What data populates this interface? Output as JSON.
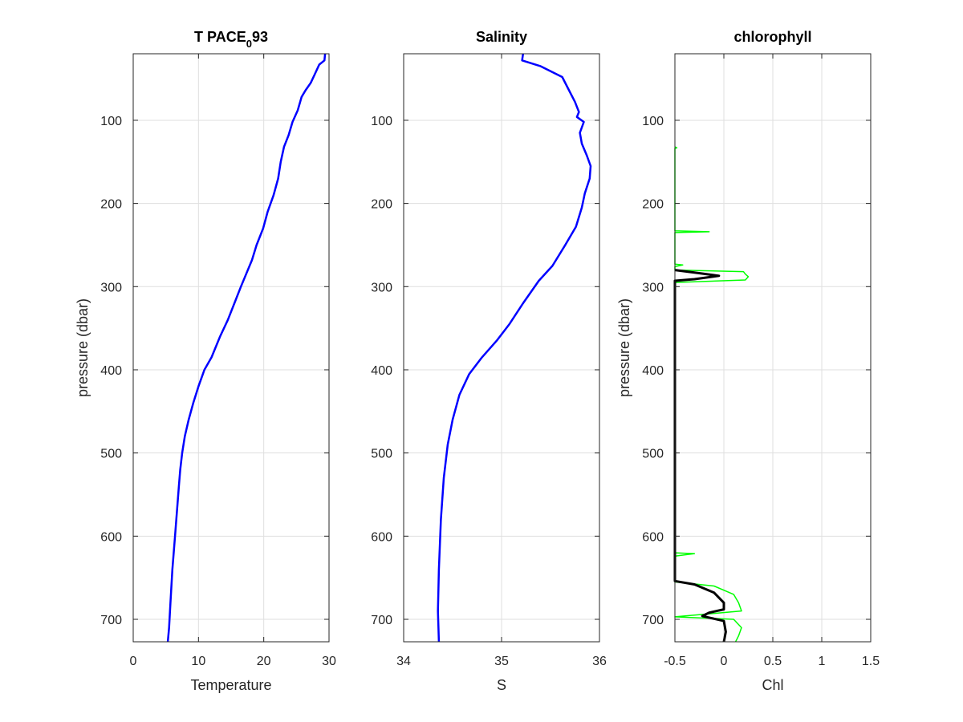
{
  "chart_data": [
    {
      "type": "line",
      "title": "T PACE",
      "title_subscript": "0",
      "title_suffix": "93",
      "xlabel": "Temperature",
      "ylabel": "pressure (dbar)",
      "xlim": [
        0,
        30
      ],
      "ylim": [
        20,
        727
      ],
      "y_reversed": true,
      "grid": true,
      "xticks": [
        0,
        10,
        20,
        30
      ],
      "yticks": [
        100,
        200,
        300,
        400,
        500,
        600,
        700
      ],
      "series": [
        {
          "color": "#0000ff",
          "points": [
            [
              29.4,
              20
            ],
            [
              29.3,
              28
            ],
            [
              28.5,
              33
            ],
            [
              27.8,
              45
            ],
            [
              27.2,
              55
            ],
            [
              26.4,
              64
            ],
            [
              25.8,
              72
            ],
            [
              25.2,
              88
            ],
            [
              24.4,
              102
            ],
            [
              23.8,
              118
            ],
            [
              23.1,
              132
            ],
            [
              22.6,
              150
            ],
            [
              22.2,
              170
            ],
            [
              21.5,
              190
            ],
            [
              20.6,
              210
            ],
            [
              19.9,
              230
            ],
            [
              18.9,
              250
            ],
            [
              18.2,
              268
            ],
            [
              17.3,
              285
            ],
            [
              16.5,
              300
            ],
            [
              15.5,
              320
            ],
            [
              14.5,
              340
            ],
            [
              13.3,
              360
            ],
            [
              12.0,
              385
            ],
            [
              10.9,
              400
            ],
            [
              10.0,
              420
            ],
            [
              9.2,
              440
            ],
            [
              8.5,
              460
            ],
            [
              7.9,
              480
            ],
            [
              7.5,
              500
            ],
            [
              7.2,
              520
            ],
            [
              7.0,
              540
            ],
            [
              6.7,
              570
            ],
            [
              6.4,
              600
            ],
            [
              6.0,
              640
            ],
            [
              5.7,
              680
            ],
            [
              5.5,
              710
            ],
            [
              5.3,
              727
            ]
          ]
        }
      ]
    },
    {
      "type": "line",
      "title": "Salinity",
      "xlabel": "S",
      "ylabel": "",
      "xlim": [
        34,
        36
      ],
      "ylim": [
        20,
        727
      ],
      "y_reversed": true,
      "grid": true,
      "xticks": [
        34,
        35,
        36
      ],
      "yticks": [
        100,
        200,
        300,
        400,
        500,
        600,
        700
      ],
      "series": [
        {
          "color": "#ff0000",
          "points": [
            [
              35.22,
              20
            ],
            [
              35.21,
              28
            ],
            [
              35.4,
              35
            ],
            [
              35.62,
              48
            ],
            [
              35.68,
              62
            ],
            [
              35.75,
              78
            ],
            [
              35.79,
              90
            ],
            [
              35.77,
              96
            ],
            [
              35.84,
              102
            ],
            [
              35.8,
              115
            ],
            [
              35.82,
              128
            ],
            [
              35.87,
              142
            ],
            [
              35.91,
              155
            ],
            [
              35.9,
              170
            ],
            [
              35.85,
              188
            ],
            [
              35.82,
              205
            ],
            [
              35.76,
              228
            ],
            [
              35.65,
              250
            ],
            [
              35.52,
              275
            ],
            [
              35.38,
              293
            ],
            [
              35.22,
              320
            ],
            [
              35.08,
              345
            ],
            [
              34.95,
              365
            ],
            [
              34.8,
              385
            ],
            [
              34.67,
              405
            ],
            [
              34.57,
              430
            ],
            [
              34.5,
              460
            ],
            [
              34.45,
              490
            ],
            [
              34.41,
              530
            ],
            [
              34.38,
              580
            ],
            [
              34.36,
              640
            ],
            [
              34.35,
              690
            ],
            [
              34.36,
              727
            ]
          ]
        },
        {
          "color": "#0000ff",
          "points": [
            [
              35.22,
              20
            ],
            [
              35.21,
              28
            ],
            [
              35.4,
              35
            ],
            [
              35.62,
              48
            ],
            [
              35.68,
              62
            ],
            [
              35.75,
              78
            ],
            [
              35.79,
              90
            ],
            [
              35.77,
              96
            ],
            [
              35.84,
              102
            ],
            [
              35.8,
              115
            ],
            [
              35.82,
              128
            ],
            [
              35.87,
              142
            ],
            [
              35.91,
              155
            ],
            [
              35.9,
              170
            ],
            [
              35.85,
              188
            ],
            [
              35.82,
              205
            ],
            [
              35.76,
              228
            ],
            [
              35.65,
              250
            ],
            [
              35.52,
              275
            ],
            [
              35.38,
              293
            ],
            [
              35.22,
              320
            ],
            [
              35.08,
              345
            ],
            [
              34.95,
              365
            ],
            [
              34.8,
              385
            ],
            [
              34.67,
              405
            ],
            [
              34.57,
              430
            ],
            [
              34.5,
              460
            ],
            [
              34.45,
              490
            ],
            [
              34.41,
              530
            ],
            [
              34.38,
              580
            ],
            [
              34.36,
              640
            ],
            [
              34.35,
              690
            ],
            [
              34.36,
              727
            ]
          ]
        }
      ]
    },
    {
      "type": "line",
      "title": "chlorophyll",
      "xlabel": "Chl",
      "ylabel": "pressure (dbar)",
      "xlim": [
        -0.5,
        1.5
      ],
      "ylim": [
        20,
        727
      ],
      "y_reversed": true,
      "grid": true,
      "xticks": [
        -0.5,
        0,
        0.5,
        1,
        1.5
      ],
      "xtick_labels": [
        "-0.5",
        "0",
        "0.5",
        "1",
        "1.5"
      ],
      "yticks": [
        100,
        200,
        300,
        400,
        500,
        600,
        700
      ],
      "series": [
        {
          "color": "#00ff00",
          "points": [
            [
              -0.5,
              132
            ],
            [
              -0.48,
              133
            ],
            [
              -0.5,
              134
            ],
            [
              -0.5,
              233
            ],
            [
              -0.15,
              234
            ],
            [
              -0.5,
              235
            ],
            [
              -0.5,
              273
            ],
            [
              -0.42,
              274
            ],
            [
              -0.5,
              276
            ],
            [
              -0.5,
              280
            ],
            [
              0.2,
              282
            ],
            [
              0.22,
              285
            ],
            [
              0.25,
              288
            ],
            [
              0.22,
              292
            ],
            [
              -0.5,
              295
            ],
            [
              -0.5,
              620
            ],
            [
              -0.3,
              621
            ],
            [
              -0.5,
              624
            ],
            [
              -0.5,
              655
            ],
            [
              -0.1,
              660
            ],
            [
              0.1,
              670
            ],
            [
              0.15,
              680
            ],
            [
              0.18,
              690
            ],
            [
              -0.3,
              695
            ],
            [
              -0.5,
              697
            ],
            [
              0.1,
              700
            ],
            [
              0.18,
              710
            ],
            [
              0.15,
              720
            ],
            [
              0.12,
              727
            ]
          ]
        },
        {
          "color": "#000000",
          "points": [
            [
              -0.5,
              280
            ],
            [
              -0.3,
              283
            ],
            [
              -0.05,
              287
            ],
            [
              -0.3,
              291
            ],
            [
              -0.5,
              293
            ],
            [
              -0.5,
              654
            ],
            [
              -0.3,
              658
            ],
            [
              -0.1,
              668
            ],
            [
              0.0,
              680
            ],
            [
              0.0,
              688
            ],
            [
              -0.15,
              692
            ],
            [
              -0.22,
              696
            ],
            [
              -0.15,
              698
            ],
            [
              0.0,
              702
            ],
            [
              0.02,
              715
            ],
            [
              0.0,
              727
            ]
          ]
        }
      ]
    }
  ]
}
